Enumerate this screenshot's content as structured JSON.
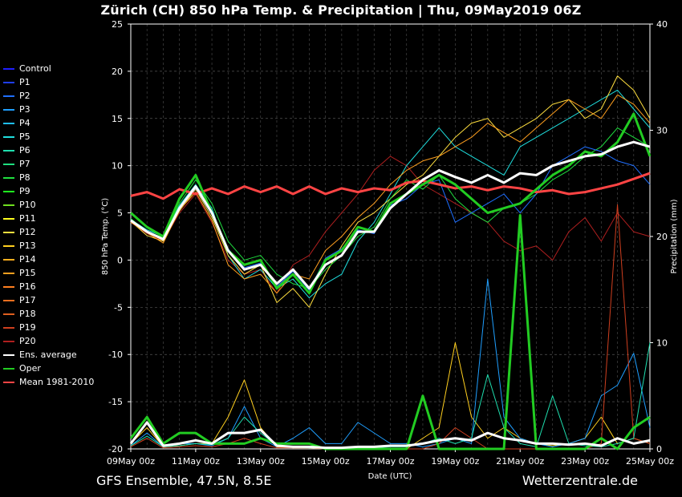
{
  "title": "Zürich  (CH)  850 hPa Temp. & Precipitation | Thu, 09May2019 06Z",
  "footer": {
    "left": "GFS Ensemble, 47.5N, 8.5E",
    "right": "Wetterzentrale.de"
  },
  "legend": [
    {
      "name": "Control",
      "color": "#1f1fff"
    },
    {
      "name": "P1",
      "color": "#1f3fff"
    },
    {
      "name": "P2",
      "color": "#1f6fff"
    },
    {
      "name": "P3",
      "color": "#1f9fff"
    },
    {
      "name": "P4",
      "color": "#1fbfff"
    },
    {
      "name": "P5",
      "color": "#1fdfdf"
    },
    {
      "name": "P6",
      "color": "#1fdfaf"
    },
    {
      "name": "P7",
      "color": "#1fdf7f"
    },
    {
      "name": "P8",
      "color": "#1fdf3f"
    },
    {
      "name": "P9",
      "color": "#1fff1f"
    },
    {
      "name": "P10",
      "color": "#6fdf1f"
    },
    {
      "name": "P11",
      "color": "#ffff1f"
    },
    {
      "name": "P12",
      "color": "#ffdf3f"
    },
    {
      "name": "P13",
      "color": "#ffcf1f"
    },
    {
      "name": "P14",
      "color": "#ffaf1f"
    },
    {
      "name": "P15",
      "color": "#ff9f1f"
    },
    {
      "name": "P16",
      "color": "#ff7f1f"
    },
    {
      "name": "P17",
      "color": "#ef6f1f"
    },
    {
      "name": "P18",
      "color": "#df5f1f"
    },
    {
      "name": "P19",
      "color": "#cf3f1f"
    },
    {
      "name": "P20",
      "color": "#af1f1f"
    },
    {
      "name": "Ens. average",
      "color": "#ffffff"
    },
    {
      "name": "Oper",
      "color": "#22cc22"
    },
    {
      "name": "Mean 1981-2010",
      "color": "#ff4444"
    }
  ],
  "chart_data": {
    "type": "line",
    "xlabel": "Date (UTC)",
    "ylabel": "850 hPa Temp. (°C)",
    "y2label": "Precipitation (mm)",
    "ylim": [
      -20,
      25
    ],
    "y2lim": [
      0,
      40
    ],
    "yticks": [
      25,
      20,
      15,
      10,
      5,
      0,
      -5,
      -10,
      -15,
      -20
    ],
    "y2ticks": [
      40,
      30,
      20,
      10,
      0
    ],
    "xlim": [
      0,
      16
    ],
    "xticks": [
      {
        "x": 0,
        "label": "09May 00z"
      },
      {
        "x": 2,
        "label": "11May 00z"
      },
      {
        "x": 4,
        "label": "13May 00z"
      },
      {
        "x": 6,
        "label": "15May 00z"
      },
      {
        "x": 8,
        "label": "17May 00z"
      },
      {
        "x": 10,
        "label": "19May 00z"
      },
      {
        "x": 12,
        "label": "21May 00z"
      },
      {
        "x": 14,
        "label": "23May 00z"
      },
      {
        "x": 16,
        "label": "25May 00z"
      }
    ],
    "grid": true,
    "x_days": [
      0,
      0.5,
      1,
      1.5,
      2,
      2.5,
      3,
      3.5,
      4,
      4.5,
      5,
      5.5,
      6,
      6.5,
      7,
      7.5,
      8,
      8.5,
      9,
      9.5,
      10,
      10.5,
      11,
      11.5,
      12,
      12.5,
      13,
      13.5,
      14,
      14.5,
      15,
      15.5,
      16
    ],
    "series": [
      {
        "name": "Mean 1981-2010",
        "axis": "temp",
        "color": "#ff4444",
        "width": 3,
        "values": [
          6.8,
          7.2,
          6.5,
          7.5,
          7.0,
          7.6,
          7.0,
          7.8,
          7.2,
          7.8,
          7.0,
          7.8,
          7.0,
          7.6,
          7.2,
          7.6,
          7.4,
          8.2,
          8.4,
          8.0,
          7.6,
          7.8,
          7.4,
          7.8,
          7.6,
          7.2,
          7.4,
          7.0,
          7.2,
          7.6,
          8.0,
          8.6,
          9.2
        ]
      },
      {
        "name": "Oper",
        "axis": "temp",
        "color": "#22cc22",
        "width": 3,
        "values": [
          5.0,
          3.5,
          2.5,
          6.5,
          9.0,
          5.0,
          1.0,
          -0.5,
          0.0,
          -3.0,
          -1.5,
          -3.5,
          0.0,
          1.0,
          3.5,
          3.0,
          6.0,
          7.0,
          8.0,
          9.0,
          8.0,
          6.5,
          5.0,
          5.5,
          6.0,
          7.5,
          9.0,
          10.0,
          11.5,
          11.0,
          12.5,
          15.5,
          11.0
        ]
      },
      {
        "name": "Ens. average",
        "axis": "temp",
        "color": "#ffffff",
        "width": 3,
        "values": [
          4.2,
          3.0,
          2.2,
          5.5,
          7.8,
          5.0,
          1.0,
          -1.0,
          -0.5,
          -2.5,
          -1.0,
          -3.0,
          -0.5,
          0.5,
          3.0,
          3.0,
          5.5,
          7.0,
          8.5,
          9.5,
          8.8,
          8.2,
          9.0,
          8.2,
          9.2,
          9.0,
          10.0,
          10.5,
          11.0,
          11.2,
          12.0,
          12.5,
          12.0
        ]
      },
      {
        "name": "P20",
        "axis": "temp",
        "color": "#af1f1f",
        "width": 1,
        "values": [
          4.0,
          2.8,
          2.0,
          5.0,
          7.0,
          4.0,
          0.0,
          -1.5,
          -1.0,
          -3.5,
          -0.5,
          0.5,
          3.0,
          5.0,
          7.0,
          9.5,
          11.0,
          10.0,
          8.0,
          7.0,
          6.0,
          5.0,
          4.0,
          2.0,
          1.0,
          1.5,
          0.0,
          3.0,
          4.5,
          2.0,
          5.0,
          3.0,
          2.5
        ]
      },
      {
        "name": "P5",
        "axis": "temp",
        "color": "#1fdfdf",
        "width": 1,
        "values": [
          4.3,
          3.2,
          2.5,
          5.8,
          8.0,
          5.5,
          0.5,
          -2.0,
          -1.0,
          -3.0,
          -2.0,
          -4.0,
          -2.5,
          -1.5,
          2.0,
          4.0,
          7.0,
          10.0,
          12.0,
          14.0,
          12.0,
          11.0,
          10.0,
          9.0,
          12.0,
          13.0,
          14.0,
          15.0,
          16.0,
          17.0,
          18.0,
          16.0,
          14.0
        ]
      },
      {
        "name": "P12",
        "axis": "temp",
        "color": "#ffdf3f",
        "width": 1,
        "values": [
          4.1,
          2.6,
          2.0,
          5.2,
          7.5,
          4.5,
          0.5,
          -1.5,
          -0.5,
          -4.5,
          -3.0,
          -5.0,
          -1.5,
          1.5,
          4.0,
          5.0,
          6.5,
          8.0,
          9.0,
          11.0,
          13.0,
          14.5,
          15.0,
          13.0,
          14.0,
          15.0,
          16.5,
          17.0,
          15.0,
          16.0,
          19.5,
          18.0,
          15.0
        ]
      },
      {
        "name": "P8",
        "axis": "temp",
        "color": "#1fdf3f",
        "width": 1,
        "values": [
          4.4,
          3.0,
          2.4,
          6.0,
          8.5,
          6.0,
          2.0,
          0.0,
          0.5,
          -1.5,
          -2.5,
          -3.0,
          -1.0,
          0.5,
          2.5,
          3.5,
          6.5,
          8.5,
          7.5,
          9.0,
          6.5,
          5.0,
          4.0,
          5.5,
          6.0,
          7.0,
          8.5,
          9.5,
          11.0,
          12.0,
          14.0,
          13.0,
          12.0
        ]
      },
      {
        "name": "P2",
        "axis": "temp",
        "color": "#1f6fff",
        "width": 1,
        "values": [
          4.2,
          3.1,
          2.1,
          5.4,
          7.6,
          4.8,
          1.2,
          -0.8,
          -0.3,
          -2.8,
          -1.2,
          -3.2,
          0.2,
          1.2,
          3.2,
          2.8,
          5.8,
          6.5,
          8.0,
          8.5,
          4.0,
          5.0,
          6.0,
          7.0,
          5.0,
          7.0,
          10.0,
          11.0,
          12.0,
          11.5,
          10.5,
          10.0,
          8.0
        ]
      },
      {
        "name": "P15",
        "axis": "temp",
        "color": "#ff9f1f",
        "width": 1,
        "values": [
          4.0,
          2.9,
          1.8,
          5.3,
          7.2,
          4.2,
          -0.5,
          -2.0,
          -1.5,
          -3.5,
          -1.5,
          -2.0,
          1.0,
          2.5,
          4.5,
          6.0,
          8.0,
          9.5,
          10.5,
          11.0,
          12.0,
          13.0,
          14.5,
          13.5,
          12.5,
          14.0,
          15.5,
          17.0,
          16.0,
          15.0,
          17.5,
          16.5,
          14.5
        ]
      }
    ],
    "precip_series": [
      {
        "name": "Oper",
        "axis": "precip",
        "color": "#22cc22",
        "width": 3,
        "values": [
          1,
          3,
          0.5,
          1.5,
          1.5,
          0.5,
          0.5,
          0.5,
          1.0,
          0.5,
          0.5,
          0.5,
          0,
          0,
          0,
          0,
          0,
          0,
          5,
          0,
          0,
          0,
          0,
          0,
          22,
          0,
          0,
          0,
          0,
          1,
          0,
          2,
          3
        ]
      },
      {
        "name": "Ens. average",
        "axis": "precip",
        "color": "#ffffff",
        "width": 3,
        "values": [
          0.5,
          2.5,
          0.3,
          0.5,
          0.8,
          0.5,
          1.5,
          1.5,
          1.8,
          0.3,
          0.2,
          0.2,
          0.1,
          0.1,
          0.2,
          0.2,
          0.3,
          0.3,
          0.5,
          0.8,
          1.0,
          0.8,
          1.5,
          1.0,
          0.8,
          0.5,
          0.5,
          0.4,
          0.5,
          0.3,
          1.0,
          0.5,
          0.8
        ]
      },
      {
        "name": "P13",
        "axis": "precip",
        "color": "#ffcf1f",
        "width": 1,
        "values": [
          0.5,
          2.0,
          0.2,
          0.3,
          0.5,
          0.5,
          3.0,
          6.5,
          2.0,
          0.2,
          0.1,
          0.1,
          0,
          0,
          0,
          0,
          0,
          0,
          1,
          2,
          10,
          3,
          1,
          2,
          1,
          0.5,
          0.3,
          0.5,
          1,
          3,
          0.5,
          1,
          0.5
        ]
      },
      {
        "name": "P3",
        "axis": "precip",
        "color": "#1f9fff",
        "width": 1,
        "values": [
          0.3,
          1.5,
          0.2,
          0.5,
          0.5,
          0.3,
          1.0,
          4.0,
          1.0,
          0.2,
          1.0,
          2.0,
          0.5,
          0.5,
          2.5,
          1.5,
          0.5,
          0.5,
          0.2,
          0.5,
          1.0,
          0.5,
          16,
          3,
          1,
          0.5,
          0.2,
          0.5,
          1,
          5,
          6,
          9,
          2
        ]
      },
      {
        "name": "P19",
        "axis": "precip",
        "color": "#cf3f1f",
        "width": 1,
        "values": [
          0.2,
          1.0,
          0.1,
          0.2,
          0.3,
          0.2,
          0.5,
          1.0,
          0.5,
          0.1,
          0.1,
          0.1,
          0,
          0,
          0,
          0,
          0,
          0,
          0,
          0.5,
          2,
          1,
          0,
          0,
          0,
          0,
          0,
          0,
          0,
          0.5,
          23,
          1,
          0.5
        ]
      },
      {
        "name": "P6",
        "axis": "precip",
        "color": "#1fdfaf",
        "width": 1,
        "values": [
          0.3,
          1.2,
          0.2,
          0.3,
          0.5,
          0.4,
          1.0,
          3.0,
          1.5,
          0.3,
          0.2,
          0.1,
          0.1,
          0.1,
          0.1,
          0.1,
          0.2,
          0.2,
          0.5,
          1.0,
          0.5,
          1.0,
          7,
          2,
          0.5,
          0.2,
          5,
          0.5,
          0.3,
          0.2,
          0.5,
          1,
          10
        ]
      }
    ]
  }
}
